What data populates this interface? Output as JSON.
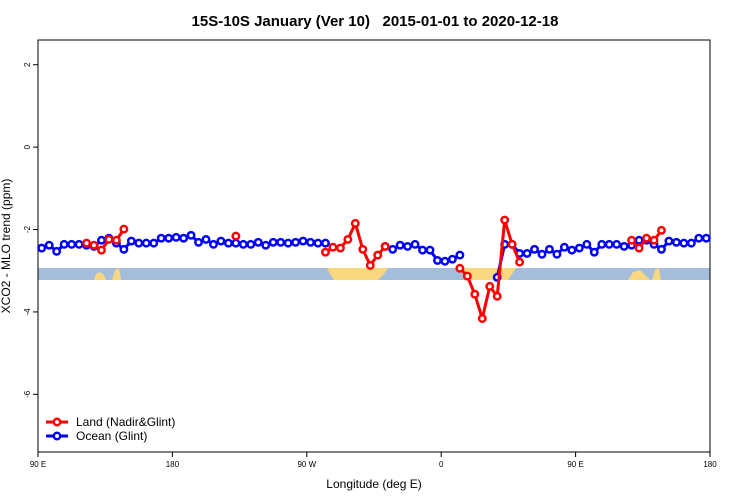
{
  "chart_data": {
    "type": "line",
    "title": "15S-10S January (Ver 10)   2015-01-01 to 2020-12-18",
    "x_label": "Longitude (deg E)",
    "y_label": "XCO2 - MLO trend (ppm)",
    "x": [
      92.5,
      97.5,
      102.5,
      107.5,
      112.5,
      117.5,
      122.5,
      127.5,
      132.5,
      137.5,
      142.5,
      147.5,
      152.5,
      157.5,
      162.5,
      167.5,
      172.5,
      177.5,
      182.5,
      187.5,
      192.5,
      197.5,
      202.5,
      207.5,
      212.5,
      217.5,
      222.5,
      227.5,
      232.5,
      237.5,
      242.5,
      247.5,
      252.5,
      257.5,
      262.5,
      267.5,
      272.5,
      277.5,
      282.5,
      287.5,
      292.5,
      297.5,
      302.5,
      307.5,
      312.5,
      317.5,
      322.5,
      327.5,
      332.5,
      337.5,
      342.5,
      347.5,
      352.5,
      357.5,
      362.5,
      367.5,
      372.5,
      377.5,
      382.5,
      387.5,
      392.5,
      397.5,
      402.5,
      407.5,
      412.5,
      417.5,
      422.5,
      427.5,
      432.5,
      437.5,
      442.5,
      447.5,
      452.5,
      457.5,
      462.5,
      467.5,
      472.5,
      477.5,
      482.5,
      487.5,
      492.5,
      497.5,
      502.5,
      507.5,
      512.5,
      517.5,
      522.5,
      527.5,
      532.5,
      537.5
    ],
    "series": [
      {
        "name": "Land (Nadir&Glint)",
        "color": "#ff0000",
        "values": [
          null,
          null,
          null,
          null,
          null,
          null,
          -2.33,
          -2.38,
          -2.5,
          -2.24,
          -2.26,
          -1.99,
          null,
          null,
          null,
          null,
          null,
          null,
          null,
          null,
          null,
          null,
          null,
          null,
          null,
          null,
          -2.16,
          null,
          null,
          null,
          null,
          null,
          null,
          null,
          null,
          null,
          null,
          null,
          -2.55,
          -2.43,
          -2.45,
          -2.24,
          -1.85,
          -2.48,
          -2.87,
          -2.62,
          -2.41,
          null,
          null,
          null,
          null,
          null,
          null,
          null,
          null,
          null,
          -2.94,
          -3.13,
          -3.57,
          -4.16,
          -3.38,
          -3.62,
          -1.77,
          -2.36,
          -2.79,
          null,
          null,
          null,
          null,
          null,
          null,
          null,
          null,
          null,
          null,
          null,
          null,
          null,
          null,
          -2.26,
          -2.45,
          -2.21,
          -2.26,
          -2.02,
          null,
          null,
          null,
          null,
          null,
          null
        ]
      },
      {
        "name": "Ocean (Glint)",
        "color": "#0000ff",
        "values": [
          -2.45,
          -2.38,
          -2.53,
          -2.36,
          -2.36,
          -2.36,
          -2.38,
          -2.41,
          -2.26,
          -2.21,
          -2.33,
          -2.48,
          -2.28,
          -2.33,
          -2.33,
          -2.33,
          -2.21,
          -2.21,
          -2.19,
          -2.21,
          -2.14,
          -2.31,
          -2.24,
          -2.36,
          -2.28,
          -2.33,
          -2.33,
          -2.36,
          -2.36,
          -2.31,
          -2.38,
          -2.31,
          -2.31,
          -2.33,
          -2.31,
          -2.28,
          -2.31,
          -2.33,
          -2.33,
          null,
          null,
          null,
          null,
          null,
          null,
          null,
          -2.41,
          -2.48,
          -2.38,
          -2.41,
          -2.36,
          -2.5,
          -2.5,
          -2.75,
          -2.77,
          -2.72,
          -2.62,
          null,
          null,
          null,
          null,
          -3.16,
          -2.36,
          -2.36,
          -2.58,
          -2.58,
          -2.48,
          -2.6,
          -2.48,
          -2.6,
          -2.43,
          -2.5,
          -2.45,
          -2.36,
          -2.55,
          -2.36,
          -2.36,
          -2.36,
          -2.41,
          -2.38,
          -2.26,
          -2.26,
          -2.36,
          -2.48,
          -2.28,
          -2.31,
          -2.33,
          -2.33,
          -2.21,
          -2.21
        ]
      }
    ],
    "xlim": [
      90,
      540
    ],
    "xticks": [
      {
        "value": 90,
        "label": "90 E"
      },
      180,
      {
        "value": 270,
        "label": "90 W"
      },
      {
        "value": 360,
        "label": "0"
      },
      {
        "value": 450,
        "label": "90 E"
      },
      {
        "value": 540,
        "label": "180"
      }
    ],
    "ylim": [
      -7.4,
      2.6
    ],
    "yticks": [
      -6,
      -4,
      -2,
      0,
      2
    ],
    "legend": "bottom-left"
  }
}
